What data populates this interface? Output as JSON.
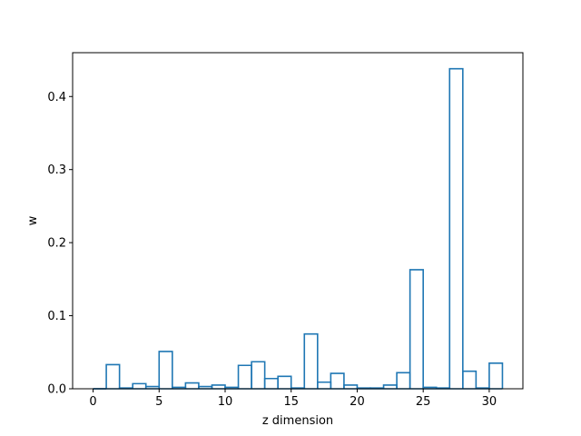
{
  "chart_data": {
    "type": "bar",
    "style": "step-outline",
    "color": "#1f77b4",
    "xlabel": "z dimension",
    "ylabel": "w",
    "xlim": [
      -1.55,
      32.55
    ],
    "ylim": [
      0,
      0.46
    ],
    "xticks": [
      0,
      5,
      10,
      15,
      20,
      25,
      30
    ],
    "yticks": [
      0.0,
      0.1,
      0.2,
      0.3,
      0.4
    ],
    "ytick_labels": [
      "0.0",
      "0.1",
      "0.2",
      "0.3",
      "0.4"
    ],
    "x": [
      0,
      1,
      2,
      3,
      4,
      5,
      6,
      7,
      8,
      9,
      10,
      11,
      12,
      13,
      14,
      15,
      16,
      17,
      18,
      19,
      20,
      21,
      22,
      23,
      24,
      25,
      26,
      27,
      28,
      29,
      30
    ],
    "values": [
      0.0,
      0.033,
      0.001,
      0.007,
      0.003,
      0.051,
      0.002,
      0.008,
      0.003,
      0.005,
      0.002,
      0.032,
      0.037,
      0.014,
      0.017,
      0.001,
      0.075,
      0.009,
      0.021,
      0.005,
      0.001,
      0.001,
      0.005,
      0.022,
      0.163,
      0.002,
      0.001,
      0.438,
      0.024,
      0.001,
      0.035
    ],
    "grid": false,
    "legend": "none"
  }
}
